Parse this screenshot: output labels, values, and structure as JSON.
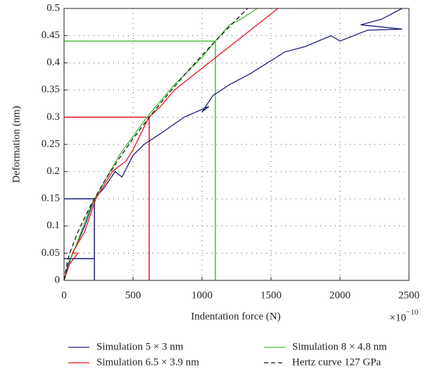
{
  "chart_data": {
    "type": "line",
    "x_label": "Indentation force (N)",
    "y_label": "Deformation (nm)",
    "x_multiplier": "×10",
    "x_multiplier_exp": "−10",
    "xlim": [
      0,
      2500
    ],
    "ylim": [
      0,
      0.5
    ],
    "xticks": [
      0,
      500,
      1000,
      1500,
      2000,
      2500
    ],
    "yticks": [
      0,
      0.05,
      0.1,
      0.15,
      0.2,
      0.25,
      0.3,
      0.35,
      0.4,
      0.45,
      0.5
    ],
    "grid": true,
    "legend": "below",
    "series": [
      {
        "name": "Simulation 5 × 3 nm",
        "color": "#1c1c80",
        "dash": false,
        "x": [
          0,
          30,
          80,
          150,
          220,
          290,
          370,
          420,
          500,
          580,
          700,
          870,
          1050,
          1000,
          1080,
          1200,
          1350,
          1475,
          1600,
          1750,
          1935,
          2000,
          2200,
          2450,
          2150,
          2300,
          2450
        ],
        "values": [
          0,
          0.03,
          0.06,
          0.1,
          0.15,
          0.17,
          0.2,
          0.19,
          0.23,
          0.25,
          0.27,
          0.3,
          0.32,
          0.31,
          0.34,
          0.36,
          0.38,
          0.4,
          0.42,
          0.43,
          0.45,
          0.44,
          0.46,
          0.462,
          0.47,
          0.48,
          0.5
        ]
      },
      {
        "name": "Simulation 8 × 4.8 nm",
        "color": "#45bf2c",
        "dash": false,
        "x": [
          0,
          50,
          200,
          400,
          600,
          800,
          1000,
          1097,
          1200,
          1280,
          1400
        ],
        "values": [
          0,
          0.04,
          0.14,
          0.23,
          0.3,
          0.36,
          0.41,
          0.44,
          0.47,
          0.48,
          0.5
        ]
      },
      {
        "name": "Simulation 6.5 × 3.9 nm",
        "color": "#e8141b",
        "dash": false,
        "x": [
          0,
          40,
          100,
          60,
          150,
          230,
          350,
          450,
          500,
          615,
          700,
          800,
          900,
          1000,
          1100,
          1200,
          1250,
          1300,
          1400,
          1500,
          1550
        ],
        "values": [
          0,
          0.03,
          0.05,
          0.05,
          0.09,
          0.15,
          0.2,
          0.22,
          0.24,
          0.3,
          0.32,
          0.35,
          0.37,
          0.39,
          0.41,
          0.43,
          0.44,
          0.45,
          0.47,
          0.49,
          0.5
        ]
      },
      {
        "name": "Hertz curve 127 GPa",
        "color": "#111111",
        "dash": true,
        "x": [
          0,
          25,
          50,
          100,
          200,
          300,
          400,
          500,
          600,
          700,
          800,
          900,
          1000,
          1100,
          1200,
          1330
        ],
        "values": [
          0,
          0.0354,
          0.0561,
          0.0891,
          0.1415,
          0.1853,
          0.2245,
          0.2606,
          0.2942,
          0.326,
          0.3564,
          0.3856,
          0.4136,
          0.4409,
          0.467,
          0.5
        ]
      }
    ],
    "guides": [
      {
        "color": "#1c1c80",
        "x": 220,
        "y": [
          0.15,
          0.04
        ]
      },
      {
        "color": "#e8141b",
        "x": 617,
        "y": [
          0.3
        ]
      },
      {
        "color": "#45bf2c",
        "x": 1097,
        "y": [
          0.44
        ]
      }
    ]
  }
}
